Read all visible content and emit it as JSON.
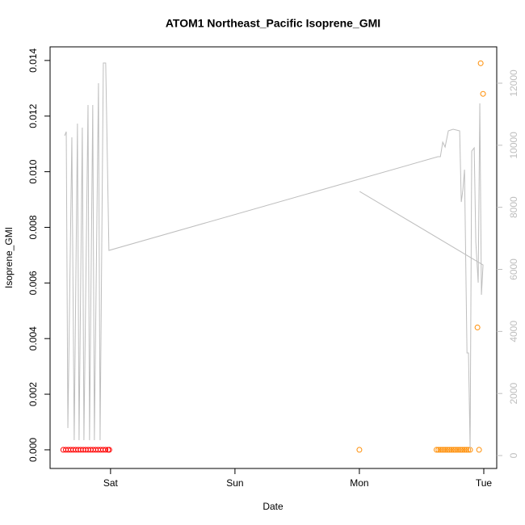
{
  "chart_data": {
    "type": "scatter",
    "title": "ATOM1 Northeast_Pacific Isoprene_GMI",
    "x_label": "Date",
    "y_label": "Isoprene_GMI",
    "xlim": [
      -0.486,
      3.104
    ],
    "ylim": [
      -0.00067,
      0.01449
    ],
    "y2lim": [
      -416,
      13171
    ],
    "xticks": [
      {
        "value": 0,
        "label": "Sat"
      },
      {
        "value": 1,
        "label": "Sun"
      },
      {
        "value": 2,
        "label": "Mon"
      },
      {
        "value": 3,
        "label": "Tue"
      }
    ],
    "yticks": [
      {
        "value": 0,
        "label": "0.000"
      },
      {
        "value": 0.002,
        "label": "0.002"
      },
      {
        "value": 0.004,
        "label": "0.004"
      },
      {
        "value": 0.006,
        "label": "0.006"
      },
      {
        "value": 0.008,
        "label": "0.008"
      },
      {
        "value": 0.01,
        "label": "0.010"
      },
      {
        "value": 0.012,
        "label": "0.012"
      },
      {
        "value": 0.014,
        "label": "0.014"
      }
    ],
    "y2ticks": [
      0,
      2000,
      4000,
      6000,
      8000,
      10000,
      12000
    ],
    "y2_color": "#bebebe",
    "series": [
      {
        "type": "scatter",
        "color": "#ff0000",
        "x": [
          -0.38,
          -0.36,
          -0.34,
          -0.32,
          -0.3,
          -0.28,
          -0.26,
          -0.24,
          -0.22,
          -0.2,
          -0.18,
          -0.16,
          -0.14,
          -0.12,
          -0.1,
          -0.08,
          -0.06,
          -0.04,
          -0.02,
          -0.01
        ],
        "values": [
          0,
          0,
          0,
          0,
          0,
          0,
          0,
          0,
          0,
          0,
          0,
          0,
          0,
          0,
          0,
          0,
          0,
          0,
          0,
          0
        ]
      },
      {
        "type": "scatter",
        "color": "#ff8c00",
        "x": [
          2.0,
          2.62,
          2.635,
          2.65,
          2.665,
          2.68,
          2.695,
          2.71,
          2.725,
          2.74,
          2.755,
          2.77,
          2.785,
          2.8,
          2.815,
          2.83,
          2.845,
          2.86,
          2.875,
          2.89,
          2.949,
          2.962,
          2.975,
          2.994
        ],
        "values": [
          0,
          0,
          0,
          0,
          0,
          0,
          0,
          0,
          0,
          0,
          0,
          0,
          0,
          0,
          0,
          0,
          0,
          0,
          0,
          0,
          0.0044,
          0,
          0.0139,
          0.0128
        ]
      },
      {
        "type": "line",
        "axis": "y2",
        "color": "#bebebe",
        "x": [
          -0.369,
          -0.356,
          -0.343,
          -0.311,
          -0.292,
          -0.266,
          -0.253,
          -0.227,
          -0.214,
          -0.181,
          -0.169,
          -0.143,
          -0.13,
          -0.097,
          -0.084,
          -0.058,
          -0.039,
          -0.013,
          2.631,
          2.651,
          2.67,
          2.689,
          2.715,
          2.754,
          2.806,
          2.819,
          2.832,
          2.845,
          2.865,
          2.877,
          2.89,
          2.903,
          2.923,
          2.936,
          2.955,
          2.968,
          2.981,
          2.994,
          2.002
        ],
        "values": [
          10307,
          10437,
          885,
          10255,
          495,
          10698,
          495,
          10568,
          495,
          11296,
          495,
          11296,
          495,
          11999,
          495,
          12650,
          12650,
          6611,
          9630,
          9630,
          10099,
          9943,
          10463,
          10515,
          10463,
          8173,
          8563,
          9214,
          3306,
          3306,
          234,
          9813,
          9917,
          6872,
          5570,
          11348,
          5180,
          6143,
          8511
        ]
      }
    ]
  }
}
